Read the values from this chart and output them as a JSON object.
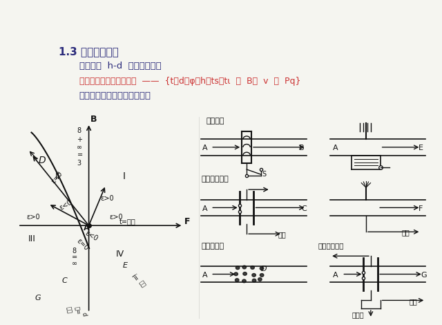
{
  "title_main": "1.3 焓湿图的应用",
  "line1": "湿空气的  h-d  图可以表示：",
  "line2": "空气的状态和各状态参数  ——  {t，d，φ，h，ts，tι  ，  B，  v  ，  Pq}",
  "line3": "湿空气状态的变化过程如下：",
  "bg_color": "#f5f5f0",
  "text_color": "#2a2a7a",
  "diagram_color": "#111111"
}
